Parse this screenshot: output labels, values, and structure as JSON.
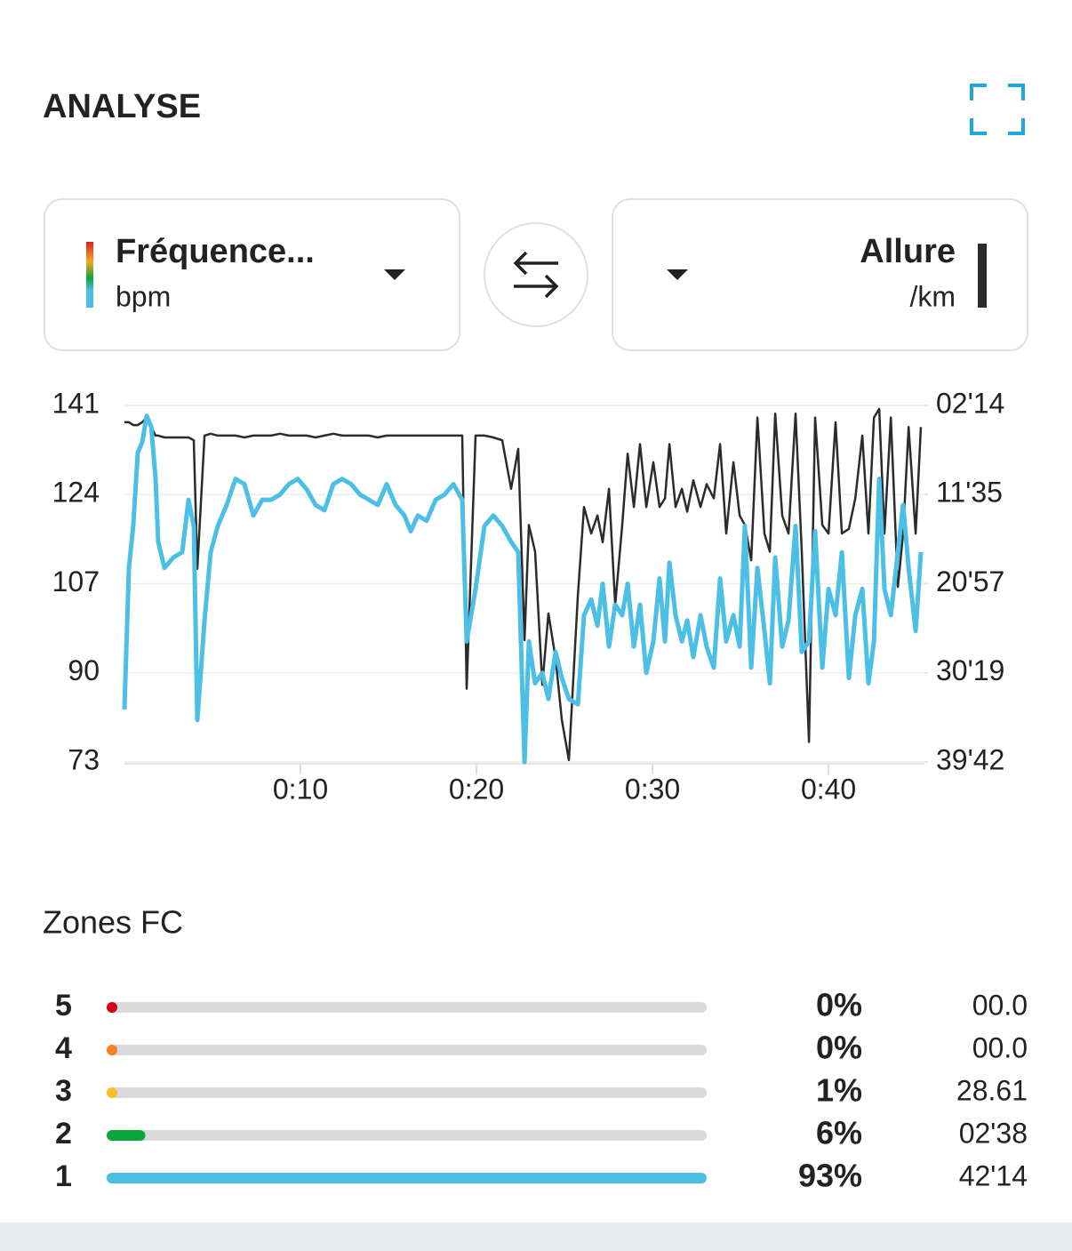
{
  "header": {
    "title": "ANALYSE"
  },
  "chart_data": {
    "type": "line",
    "x": [
      0,
      0.25,
      0.5,
      0.76,
      1.01,
      1.26,
      1.52,
      1.77,
      1.92,
      2.27,
      2.78,
      3.28,
      3.64,
      3.94,
      4.14,
      4.55,
      4.9,
      5.3,
      5.81,
      6.31,
      6.82,
      7.32,
      7.83,
      8.33,
      8.84,
      9.34,
      9.85,
      10.35,
      10.86,
      11.36,
      11.87,
      12.37,
      12.88,
      13.38,
      13.89,
      14.39,
      14.9,
      15.4,
      15.91,
      16.26,
      16.67,
      17.17,
      17.68,
      18.18,
      18.69,
      19.19,
      19.44,
      19.95,
      20.45,
      20.96,
      21.46,
      21.97,
      22.37,
      22.73,
      22.98,
      23.33,
      23.74,
      24.09,
      24.49,
      24.85,
      25.25,
      25.76,
      26.11,
      26.52,
      26.87,
      27.17,
      27.53,
      27.88,
      28.28,
      28.59,
      28.94,
      29.29,
      29.65,
      30.05,
      30.4,
      30.71,
      30.96,
      31.31,
      31.67,
      31.97,
      32.32,
      32.73,
      33.08,
      33.48,
      33.84,
      34.19,
      34.6,
      34.95,
      35.25,
      35.61,
      35.96,
      36.36,
      36.67,
      36.97,
      37.37,
      37.73,
      38.13,
      38.48,
      38.89,
      39.24,
      39.65,
      40.0,
      40.4,
      40.76,
      41.16,
      41.52,
      41.92,
      42.27,
      42.58,
      42.88,
      43.18,
      43.54,
      43.94,
      44.24,
      44.55,
      44.95,
      45.25
    ],
    "series": [
      {
        "name": "Fréquence...",
        "unit": "bpm",
        "color": "#4cbfe6",
        "axis": "y",
        "values": [
          83,
          110,
          118,
          132,
          134,
          139,
          137,
          127,
          115,
          110,
          112,
          113,
          123,
          118,
          81,
          100,
          113,
          118,
          122,
          127,
          126,
          120,
          123,
          123,
          124,
          126,
          127,
          125,
          122,
          121,
          126,
          127,
          126,
          124,
          123,
          122,
          126,
          122,
          120,
          117,
          120,
          119,
          123,
          124,
          126,
          123,
          96,
          106,
          118,
          120,
          118,
          115,
          113,
          73,
          96,
          88,
          90,
          85,
          94,
          89,
          85,
          84,
          101,
          104,
          99,
          107,
          95,
          103,
          101,
          107,
          95,
          103,
          90,
          96,
          108,
          96,
          111,
          101,
          96,
          100,
          93,
          101,
          95,
          91,
          108,
          96,
          101,
          95,
          118,
          91,
          110,
          98,
          88,
          112,
          95,
          100,
          118,
          94,
          96,
          117,
          91,
          106,
          101,
          113,
          89,
          101,
          106,
          88,
          96,
          127,
          106,
          101,
          113,
          122,
          110,
          98,
          113
        ]
      },
      {
        "name": "Allure",
        "unit": "/km",
        "color": "#2b2b2b",
        "axis": "y2",
        "values": [
          4.0,
          4.0,
          4.3,
          4.3,
          4.0,
          3.5,
          4.5,
          5.4,
          5.4,
          5.6,
          5.6,
          5.6,
          5.6,
          5.9,
          19.4,
          5.4,
          5.2,
          5.4,
          5.4,
          5.4,
          5.6,
          5.4,
          5.4,
          5.4,
          5.2,
          5.4,
          5.4,
          5.4,
          5.6,
          5.4,
          5.2,
          5.4,
          5.4,
          5.4,
          5.4,
          5.6,
          5.4,
          5.4,
          5.4,
          5.4,
          5.4,
          5.4,
          5.4,
          5.4,
          5.4,
          5.4,
          32.0,
          5.4,
          5.4,
          5.6,
          5.9,
          11.0,
          6.8,
          26.9,
          14.8,
          17.6,
          31.6,
          24.1,
          28.8,
          35.3,
          39.5,
          22.2,
          12.9,
          15.7,
          13.8,
          16.6,
          11.0,
          23.2,
          14.8,
          7.3,
          12.9,
          6.3,
          12.9,
          8.2,
          12.9,
          12.0,
          6.3,
          12.9,
          11.0,
          13.4,
          10.1,
          12.9,
          10.5,
          12.0,
          6.3,
          15.7,
          8.2,
          13.8,
          14.8,
          18.5,
          3.5,
          15.7,
          17.6,
          3.1,
          13.8,
          15.7,
          3.1,
          17.6,
          37.6,
          3.5,
          14.8,
          15.7,
          4.0,
          15.7,
          15.2,
          12.0,
          5.4,
          15.7,
          3.5,
          2.6,
          15.7,
          3.5,
          21.3,
          15.7,
          4.5,
          15.7,
          4.5
        ]
      }
    ],
    "xlim": [
      0,
      45.45
    ],
    "xticks": [
      {
        "value": 10,
        "label": "0:10"
      },
      {
        "value": 20,
        "label": "0:20"
      },
      {
        "value": 30,
        "label": "0:30"
      },
      {
        "value": 40,
        "label": "0:40"
      }
    ],
    "ylim": [
      73,
      141
    ],
    "yticks": [
      73,
      90,
      107,
      124,
      141
    ],
    "y2lim": [
      2.233,
      39.7
    ],
    "y2_reversed": true,
    "y2ticks": [
      {
        "value": 2.233,
        "label": "02'14"
      },
      {
        "value": 11.583,
        "label": "11'35"
      },
      {
        "value": 20.95,
        "label": "20'57"
      },
      {
        "value": 30.317,
        "label": "30'19"
      },
      {
        "value": 39.7,
        "label": "39'42"
      }
    ],
    "grid": true
  },
  "zones": {
    "title": "Zones FC",
    "rows": [
      {
        "zone": "5",
        "color": "#d0021b",
        "percent": 0,
        "percent_label": "0%",
        "time": "00.0"
      },
      {
        "zone": "4",
        "color": "#f5821f",
        "percent": 0,
        "percent_label": "0%",
        "time": "00.0"
      },
      {
        "zone": "3",
        "color": "#fbbf24",
        "percent": 1,
        "percent_label": "1%",
        "time": "28.61"
      },
      {
        "zone": "2",
        "color": "#0aa63b",
        "percent": 6,
        "percent_label": "6%",
        "time": "02'38"
      },
      {
        "zone": "1",
        "color": "#4cbfe6",
        "percent": 93,
        "percent_label": "93%",
        "time": "42'14"
      }
    ]
  }
}
